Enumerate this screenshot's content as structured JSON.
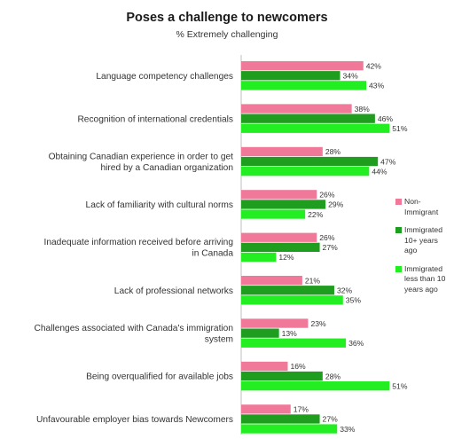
{
  "chart_data": {
    "type": "bar",
    "orientation": "horizontal",
    "title": "Poses a challenge to newcomers",
    "subtitle": "% Extremely challenging",
    "categories": [
      "Language competency challenges",
      "Recognition of international credentials",
      "Obtaining Canadian experience in order to get hired by a Canadian organization",
      "Lack of familiarity with cultural norms",
      "Inadequate information received before arriving in Canada",
      "Lack of professional networks",
      "Challenges associated with Canada's immigration system",
      "Being overqualified for available jobs",
      "Unfavourable employer bias towards Newcomers"
    ],
    "series": [
      {
        "name": "Non-Immigrant",
        "color": "#f0799a",
        "values": [
          42,
          38,
          28,
          26,
          26,
          21,
          23,
          16,
          17
        ]
      },
      {
        "name": "Immigrated 10+ years ago",
        "color": "#1e9d1e",
        "values": [
          34,
          46,
          47,
          29,
          27,
          32,
          13,
          28,
          27
        ]
      },
      {
        "name": "Immigrated less than 10 years ago",
        "color": "#22ee22",
        "values": [
          43,
          51,
          44,
          22,
          12,
          35,
          36,
          51,
          33
        ]
      }
    ],
    "value_suffix": "%",
    "xlim": [
      0,
      60
    ],
    "grid": false,
    "legend_position": "right"
  },
  "legend_lines": [
    [
      "Non-",
      "Immigrant"
    ],
    [
      "Immigrated",
      "10+ years",
      "ago"
    ],
    [
      "Immigrated",
      "less than 10",
      "years ago"
    ]
  ]
}
